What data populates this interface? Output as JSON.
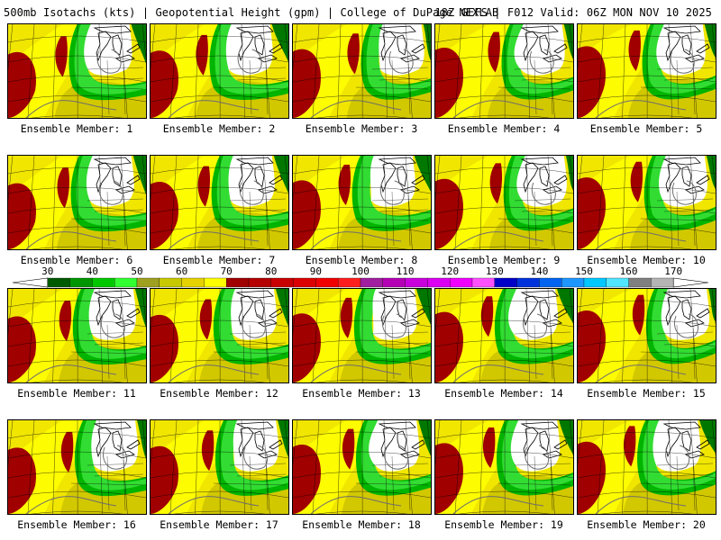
{
  "header": {
    "left": "500mb Isotachs (kts) | Geopotential Height (gpm) | College of DuPage NEXLAB",
    "right": "18Z GEFS | F012 Valid: 06Z MON NOV 10 2025"
  },
  "panels": [
    {
      "caption": "Ensemble Member: 1"
    },
    {
      "caption": "Ensemble Member: 2"
    },
    {
      "caption": "Ensemble Member: 3"
    },
    {
      "caption": "Ensemble Member: 4"
    },
    {
      "caption": "Ensemble Member: 5"
    },
    {
      "caption": "Ensemble Member: 6"
    },
    {
      "caption": "Ensemble Member: 7"
    },
    {
      "caption": "Ensemble Member: 8"
    },
    {
      "caption": "Ensemble Member: 9"
    },
    {
      "caption": "Ensemble Member: 10"
    },
    {
      "caption": "Ensemble Member: 11"
    },
    {
      "caption": "Ensemble Member: 12"
    },
    {
      "caption": "Ensemble Member: 13"
    },
    {
      "caption": "Ensemble Member: 14"
    },
    {
      "caption": "Ensemble Member: 15"
    },
    {
      "caption": "Ensemble Member: 16"
    },
    {
      "caption": "Ensemble Member: 17"
    },
    {
      "caption": "Ensemble Member: 18"
    },
    {
      "caption": "Ensemble Member: 19"
    },
    {
      "caption": "Ensemble Member: 20"
    }
  ],
  "colorbar": {
    "labels": [
      "30",
      "40",
      "50",
      "60",
      "70",
      "80",
      "90",
      "100",
      "110",
      "120",
      "130",
      "140",
      "150",
      "160",
      "170"
    ],
    "bins": [
      {
        "from": 30,
        "to": 35,
        "color": "#005a00"
      },
      {
        "from": 35,
        "to": 40,
        "color": "#009600"
      },
      {
        "from": 40,
        "to": 45,
        "color": "#00c800"
      },
      {
        "from": 45,
        "to": 50,
        "color": "#32ff32"
      },
      {
        "from": 50,
        "to": 55,
        "color": "#a0a020"
      },
      {
        "from": 55,
        "to": 60,
        "color": "#c8c800"
      },
      {
        "from": 60,
        "to": 65,
        "color": "#e6d200"
      },
      {
        "from": 65,
        "to": 70,
        "color": "#ffff00"
      },
      {
        "from": 70,
        "to": 75,
        "color": "#a00000"
      },
      {
        "from": 75,
        "to": 80,
        "color": "#b40000"
      },
      {
        "from": 80,
        "to": 85,
        "color": "#c80000"
      },
      {
        "from": 85,
        "to": 90,
        "color": "#dc0000"
      },
      {
        "from": 90,
        "to": 95,
        "color": "#f00000"
      },
      {
        "from": 95,
        "to": 100,
        "color": "#ff1e1e"
      },
      {
        "from": 100,
        "to": 105,
        "color": "#a01ea0"
      },
      {
        "from": 105,
        "to": 110,
        "color": "#b400b4"
      },
      {
        "from": 110,
        "to": 115,
        "color": "#c800dc"
      },
      {
        "from": 115,
        "to": 120,
        "color": "#dc00f0"
      },
      {
        "from": 120,
        "to": 125,
        "color": "#f000ff"
      },
      {
        "from": 125,
        "to": 130,
        "color": "#ff50ff"
      },
      {
        "from": 130,
        "to": 135,
        "color": "#0000c8"
      },
      {
        "from": 135,
        "to": 140,
        "color": "#0032dc"
      },
      {
        "from": 140,
        "to": 145,
        "color": "#0064f0"
      },
      {
        "from": 145,
        "to": 150,
        "color": "#1e96ff"
      },
      {
        "from": 150,
        "to": 155,
        "color": "#00c8ff"
      },
      {
        "from": 155,
        "to": 160,
        "color": "#50e6ff"
      },
      {
        "from": 160,
        "to": 165,
        "color": "#808080"
      },
      {
        "from": 165,
        "to": 170,
        "color": "#b4b4b4"
      }
    ]
  },
  "map_colors": {
    "weak": "#ffffff",
    "green_dark": "#007800",
    "green": "#00b400",
    "green_light": "#32dc32",
    "olive": "#b4aa10",
    "yellow_dark": "#d2c800",
    "yellow": "#f0e600",
    "yellow_bright": "#ffff00",
    "red": "#a00000",
    "grid": "#000000",
    "contour": "#6e6e6e"
  }
}
